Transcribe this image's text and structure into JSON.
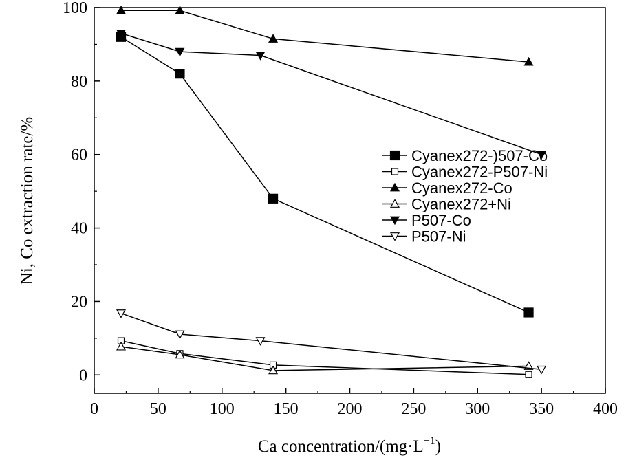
{
  "chart_data": {
    "type": "line",
    "xlabel": "Ca concentration/(mg·L",
    "xlabel_sup": "−1",
    "xlabel_tail": ")",
    "ylabel": "Ni, Co extraction rate/%",
    "xlim": [
      0,
      400
    ],
    "ylim": [
      -5,
      100
    ],
    "xticks": [
      "0",
      "50",
      "100",
      "150",
      "200",
      "250",
      "300",
      "350",
      "400"
    ],
    "yticks": [
      "0",
      "20",
      "40",
      "60",
      "80",
      "100"
    ],
    "grid": false,
    "legend_position": "center-right",
    "series": [
      {
        "name": "Cyanex272-)507-Co",
        "marker": "square-filled",
        "x": [
          21,
          67,
          140,
          340
        ],
        "y": [
          92,
          82,
          48,
          17
        ]
      },
      {
        "name": "Cyanex272-P507-Ni",
        "marker": "square-open",
        "x": [
          21,
          67,
          140,
          340
        ],
        "y": [
          9.3,
          5.8,
          2.7,
          0.1
        ]
      },
      {
        "name": "Cyanex272-Co",
        "marker": "triangle-up-filled",
        "x": [
          21,
          67,
          140,
          340
        ],
        "y": [
          99.2,
          99.2,
          91.5,
          85.2
        ]
      },
      {
        "name": "Cyanex272+Ni",
        "marker": "triangle-up-open",
        "x": [
          21,
          67,
          140,
          340
        ],
        "y": [
          7.7,
          5.5,
          1.2,
          2.4
        ]
      },
      {
        "name": "P507-Co",
        "marker": "triangle-down-filled",
        "x": [
          21,
          67,
          130,
          350
        ],
        "y": [
          93,
          88,
          87,
          60
        ]
      },
      {
        "name": "P507-Ni",
        "marker": "triangle-down-open",
        "x": [
          21,
          67,
          130,
          350
        ],
        "y": [
          16.8,
          11.1,
          9.3,
          1.5
        ]
      }
    ]
  }
}
